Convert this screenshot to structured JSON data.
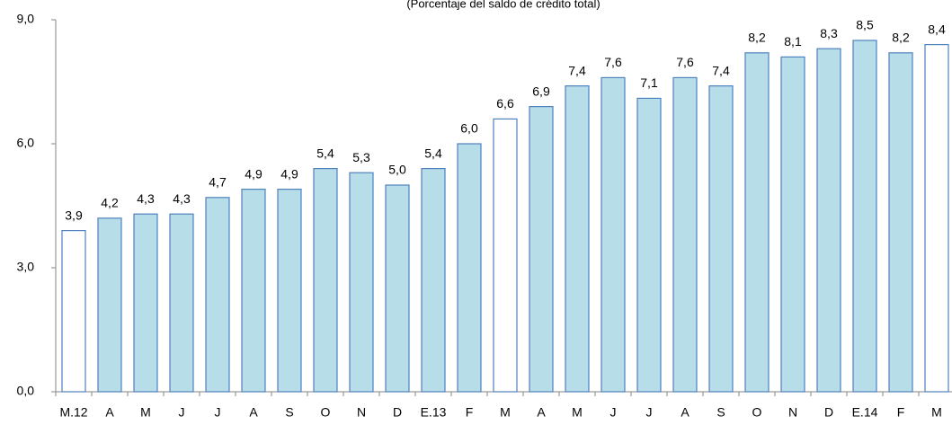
{
  "chart_data": {
    "type": "bar",
    "subtitle": "(Porcentaje del saldo de crédito total)",
    "categories": [
      "M.12",
      "A",
      "M",
      "J",
      "J",
      "A",
      "S",
      "O",
      "N",
      "D",
      "E.13",
      "F",
      "M",
      "A",
      "M",
      "J",
      "J",
      "A",
      "S",
      "O",
      "N",
      "D",
      "E.14",
      "F",
      "M"
    ],
    "values": [
      3.9,
      4.2,
      4.3,
      4.3,
      4.7,
      4.9,
      4.9,
      5.4,
      5.3,
      5.0,
      5.4,
      6.0,
      6.6,
      6.9,
      7.4,
      7.6,
      7.1,
      7.6,
      7.4,
      8.2,
      8.1,
      8.3,
      8.5,
      8.2,
      8.4
    ],
    "value_labels": [
      "3,9",
      "4,2",
      "4,3",
      "4,3",
      "4,7",
      "4,9",
      "4,9",
      "5,4",
      "5,3",
      "5,0",
      "5,4",
      "6,0",
      "6,6",
      "6,9",
      "7,4",
      "7,6",
      "7,1",
      "7,6",
      "7,4",
      "8,2",
      "8,1",
      "8,3",
      "8,5",
      "8,2",
      "8,4"
    ],
    "colors": [
      "#ffffff",
      "#b7dde8",
      "#b7dde8",
      "#b7dde8",
      "#b7dde8",
      "#b7dde8",
      "#b7dde8",
      "#b7dde8",
      "#b7dde8",
      "#b7dde8",
      "#b7dde8",
      "#b7dde8",
      "#ffffff",
      "#b7dde8",
      "#b7dde8",
      "#b7dde8",
      "#b7dde8",
      "#b7dde8",
      "#b7dde8",
      "#b7dde8",
      "#b7dde8",
      "#b7dde8",
      "#b7dde8",
      "#b7dde8",
      "#ffffff"
    ],
    "border_color": "#4f81bd",
    "ylim": [
      0,
      9
    ],
    "yticks": [
      {
        "value": 0,
        "label": "0,0"
      },
      {
        "value": 3,
        "label": "3,0"
      },
      {
        "value": 6,
        "label": "6,0"
      },
      {
        "value": 9,
        "label": "9,0"
      }
    ]
  }
}
